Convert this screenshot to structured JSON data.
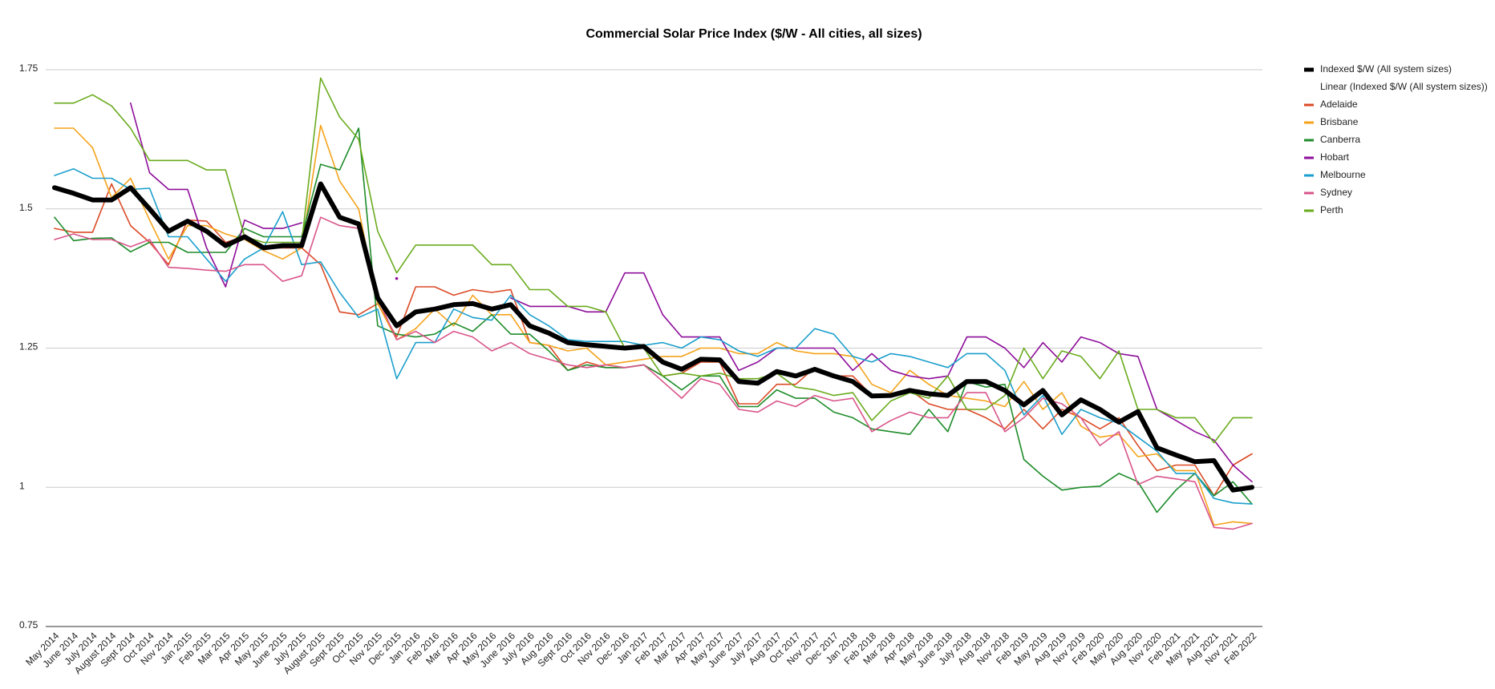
{
  "chart_data": {
    "type": "line",
    "title": "Commercial Solar Price Index ($/W - All cities, all sizes)",
    "categories": [
      "May 2014",
      "June 2014",
      "July 2014",
      "August 2014",
      "Sept 2014",
      "Oct 2014",
      "Nov 2014",
      "Jan 2015",
      "Feb 2015",
      "Mar 2015",
      "Apr 2015",
      "May 2015",
      "June 2015",
      "July 2015",
      "August 2015",
      "Sept 2015",
      "Oct 2015",
      "Nov 2015",
      "Dec 2015",
      "Jan 2016",
      "Feb 2016",
      "Mar 2016",
      "Apr 2016",
      "May 2016",
      "June 2016",
      "July 2016",
      "Aug 2016",
      "Sept 2016",
      "Oct 2016",
      "Nov 2016",
      "Dec 2016",
      "Jan 2017",
      "Feb 2017",
      "Mar 2017",
      "Apr 2017",
      "May 2017",
      "June 2017",
      "July 2017",
      "Aug 2017",
      "Oct 2017",
      "Nov 2017",
      "Dec 2017",
      "Jan 2018",
      "Feb 2018",
      "Mar 2018",
      "Apr 2018",
      "May 2018",
      "June 2018",
      "July 2018",
      "Aug 2018",
      "Nov 2018",
      "Feb 2019",
      "May 2019",
      "Aug 2019",
      "Nov 2019",
      "Feb 2020",
      "May 2020",
      "Aug 2020",
      "Nov 2020",
      "Feb 2021",
      "May 2021",
      "Aug 2021",
      "Nov 2021",
      "Feb 2022"
    ],
    "series": [
      {
        "name": "Indexed $/W (All system sizes)",
        "color": "#000000",
        "width": 6,
        "values": [
          1.538,
          1.528,
          1.516,
          1.516,
          1.538,
          1.5,
          1.46,
          1.478,
          1.46,
          1.434,
          1.45,
          1.43,
          1.434,
          1.434,
          1.545,
          1.485,
          1.473,
          1.34,
          1.29,
          1.315,
          1.32,
          1.328,
          1.33,
          1.32,
          1.328,
          1.29,
          1.277,
          1.26,
          1.256,
          1.253,
          1.25,
          1.253,
          1.225,
          1.212,
          1.23,
          1.229,
          1.19,
          1.187,
          1.208,
          1.2,
          1.212,
          1.2,
          1.19,
          1.164,
          1.165,
          1.174,
          1.168,
          1.165,
          1.19,
          1.19,
          1.174,
          1.148,
          1.174,
          1.13,
          1.157,
          1.14,
          1.117,
          1.136,
          1.071,
          1.058,
          1.046,
          1.048,
          0.995,
          1.0
        ]
      },
      {
        "name": "Adelaide",
        "color": "#db4a26",
        "width": 1.6,
        "values": [
          1.465,
          1.458,
          1.458,
          1.545,
          1.47,
          1.44,
          1.4,
          1.48,
          1.478,
          1.44,
          1.45,
          1.43,
          1.43,
          1.43,
          1.4,
          1.315,
          1.31,
          1.33,
          1.27,
          1.36,
          1.36,
          1.345,
          1.355,
          1.35,
          1.355,
          1.26,
          1.255,
          1.21,
          1.225,
          1.215,
          1.215,
          1.22,
          1.2,
          1.205,
          1.225,
          1.225,
          1.15,
          1.15,
          1.185,
          1.185,
          1.215,
          1.2,
          1.2,
          1.165,
          1.165,
          1.175,
          1.15,
          1.14,
          1.14,
          1.125,
          1.105,
          1.14,
          1.105,
          1.14,
          1.125,
          1.105,
          1.125,
          1.075,
          1.03,
          1.04,
          1.04,
          0.985,
          1.04,
          1.06
        ]
      },
      {
        "name": "Brisbane",
        "color": "#f5a31a",
        "width": 1.6,
        "values": [
          1.645,
          1.645,
          1.61,
          1.52,
          1.555,
          1.48,
          1.41,
          1.47,
          1.47,
          1.455,
          1.445,
          1.425,
          1.41,
          1.43,
          1.65,
          1.55,
          1.5,
          1.33,
          1.265,
          1.285,
          1.32,
          1.29,
          1.345,
          1.31,
          1.31,
          1.26,
          1.255,
          1.245,
          1.25,
          1.22,
          1.225,
          1.23,
          1.235,
          1.235,
          1.25,
          1.25,
          1.24,
          1.24,
          1.26,
          1.245,
          1.24,
          1.24,
          1.235,
          1.185,
          1.17,
          1.21,
          1.185,
          1.165,
          1.16,
          1.155,
          1.145,
          1.19,
          1.14,
          1.17,
          1.11,
          1.09,
          1.095,
          1.055,
          1.06,
          1.03,
          1.03,
          0.932,
          0.938,
          0.935
        ]
      },
      {
        "name": "Canberra",
        "color": "#1e8c2a",
        "width": 1.6,
        "values": [
          1.485,
          1.443,
          1.447,
          1.448,
          1.423,
          1.44,
          1.44,
          1.422,
          1.422,
          1.422,
          1.465,
          1.45,
          1.45,
          1.45,
          1.58,
          1.57,
          1.645,
          1.29,
          1.275,
          1.27,
          1.275,
          1.295,
          1.28,
          1.31,
          1.275,
          1.275,
          1.245,
          1.21,
          1.22,
          1.215,
          1.215,
          1.22,
          1.2,
          1.175,
          1.2,
          1.2,
          1.145,
          1.145,
          1.175,
          1.16,
          1.16,
          1.135,
          1.125,
          1.105,
          1.1,
          1.095,
          1.14,
          1.1,
          1.19,
          1.18,
          1.185,
          1.05,
          1.02,
          0.995,
          1.0,
          1.002,
          1.025,
          1.01,
          0.955,
          0.995,
          1.025,
          0.985,
          1.01,
          0.97
        ]
      },
      {
        "name": "Hobart",
        "color": "#8e0e9a",
        "width": 1.6,
        "values": [
          null,
          null,
          null,
          null,
          1.69,
          1.565,
          1.535,
          1.535,
          1.43,
          1.36,
          1.48,
          1.465,
          1.465,
          1.475,
          null,
          null,
          null,
          null,
          1.375,
          null,
          null,
          null,
          null,
          null,
          1.34,
          1.325,
          1.325,
          1.325,
          1.315,
          1.315,
          1.385,
          1.385,
          1.31,
          1.27,
          1.27,
          1.27,
          1.21,
          1.225,
          1.25,
          1.25,
          1.25,
          1.25,
          1.21,
          1.24,
          1.21,
          1.2,
          1.195,
          1.2,
          1.27,
          1.27,
          1.25,
          1.215,
          1.26,
          1.225,
          1.27,
          1.26,
          1.24,
          1.235,
          1.14,
          1.12,
          1.1,
          1.085,
          1.04,
          1.01
        ]
      },
      {
        "name": "Melbourne",
        "color": "#1b9fcc",
        "width": 1.6,
        "values": [
          1.56,
          1.572,
          1.555,
          1.555,
          1.535,
          1.537,
          1.45,
          1.45,
          1.41,
          1.37,
          1.41,
          1.43,
          1.495,
          1.4,
          1.405,
          1.35,
          1.305,
          1.32,
          1.195,
          1.26,
          1.26,
          1.32,
          1.305,
          1.3,
          1.345,
          1.31,
          1.29,
          1.265,
          1.262,
          1.262,
          1.262,
          1.255,
          1.26,
          1.25,
          1.27,
          1.265,
          1.245,
          1.235,
          1.25,
          1.25,
          1.285,
          1.275,
          1.235,
          1.225,
          1.24,
          1.235,
          1.225,
          1.215,
          1.24,
          1.24,
          1.21,
          1.13,
          1.165,
          1.095,
          1.14,
          1.125,
          1.115,
          1.09,
          1.065,
          1.025,
          1.025,
          0.98,
          0.972,
          0.97
        ]
      },
      {
        "name": "Sydney",
        "color": "#d9558a",
        "width": 1.6,
        "values": [
          1.445,
          1.455,
          1.445,
          1.445,
          1.432,
          1.445,
          1.395,
          1.393,
          1.39,
          1.388,
          1.4,
          1.4,
          1.37,
          1.38,
          1.485,
          1.47,
          1.465,
          1.34,
          1.265,
          1.28,
          1.26,
          1.28,
          1.27,
          1.245,
          1.26,
          1.24,
          1.23,
          1.22,
          1.215,
          1.22,
          1.215,
          1.22,
          1.19,
          1.16,
          1.195,
          1.185,
          1.14,
          1.135,
          1.155,
          1.145,
          1.165,
          1.155,
          1.16,
          1.1,
          1.12,
          1.135,
          1.125,
          1.125,
          1.17,
          1.17,
          1.1,
          1.125,
          1.16,
          1.15,
          1.125,
          1.075,
          1.1,
          1.005,
          1.02,
          1.015,
          1.01,
          0.928,
          0.925,
          0.935
        ]
      },
      {
        "name": "Perth",
        "color": "#6aab1e",
        "width": 1.6,
        "values": [
          1.69,
          1.69,
          1.705,
          1.685,
          1.645,
          1.587,
          1.587,
          1.587,
          1.57,
          1.57,
          1.45,
          1.44,
          1.44,
          1.44,
          1.735,
          1.665,
          1.625,
          1.46,
          1.385,
          1.435,
          1.435,
          1.435,
          1.435,
          1.4,
          1.4,
          1.355,
          1.355,
          1.325,
          1.325,
          1.315,
          1.25,
          1.25,
          1.2,
          1.205,
          1.2,
          1.205,
          1.195,
          1.195,
          1.205,
          1.18,
          1.175,
          1.165,
          1.17,
          1.12,
          1.155,
          1.17,
          1.16,
          1.2,
          1.14,
          1.14,
          1.165,
          1.25,
          1.195,
          1.245,
          1.235,
          1.195,
          1.245,
          1.14,
          1.14,
          1.125,
          1.125,
          1.08,
          1.125,
          1.125
        ]
      }
    ],
    "trendline_name": "Linear (Indexed $/W (All system sizes))",
    "ylim": [
      0.75,
      1.75
    ],
    "yticks": [
      0.75,
      1,
      1.25,
      1.5,
      1.75
    ],
    "grid": true,
    "legend": "right"
  }
}
